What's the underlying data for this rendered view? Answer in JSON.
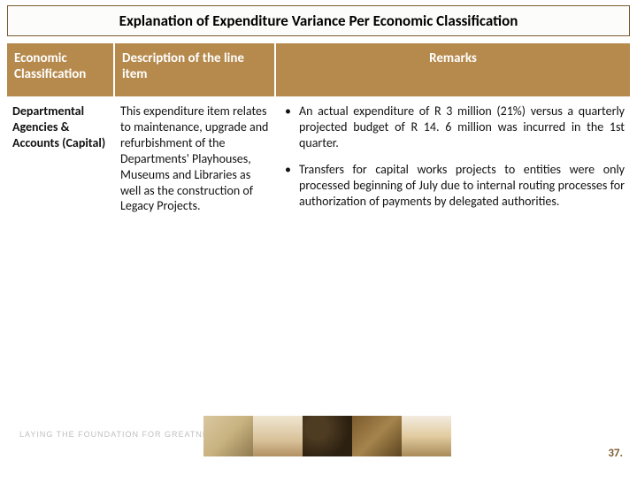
{
  "title": "Explanation of Expenditure Variance Per Economic Classification",
  "headers": {
    "col1": "Economic Classification",
    "col2": "Description of the line item",
    "col3": "Remarks"
  },
  "row": {
    "classification": "Departmental Agencies & Accounts (Capital)",
    "description": "This expenditure item relates to maintenance, upgrade and refurbishment of the Departments' Playhouses, Museums and Libraries as well as the construction of Legacy Projects.",
    "remarks": [
      "An actual expenditure of R 3 million (21%) versus a quarterly projected budget of R 14. 6 million was incurred in the 1st quarter.",
      "Transfers for capital works projects to entities were only processed beginning of July due to internal routing processes for authorization of payments by delegated authorities."
    ]
  },
  "footer": {
    "tagline": "LAYING THE FOUNDATION FOR GREATNESS",
    "page": "37."
  },
  "style": {
    "header_bg": "#b68a4d",
    "header_text": "#ffffff",
    "title_border": "#7a5c30",
    "pagenum_color": "#7b5a2e"
  }
}
